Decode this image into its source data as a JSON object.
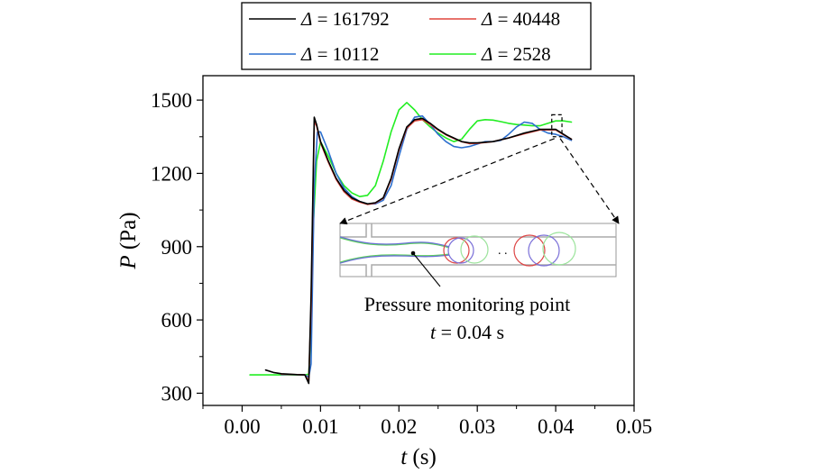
{
  "chart_data": {
    "type": "line",
    "title": "",
    "xlabel_sym": "t",
    "xlabel_unit": " (s)",
    "ylabel_sym": "P",
    "ylabel_unit": " (Pa)",
    "xlim": [
      -0.005,
      0.05
    ],
    "ylim": [
      250,
      1600
    ],
    "xticks": [
      0.0,
      0.01,
      0.02,
      0.03,
      0.04,
      0.05
    ],
    "xtick_labels": [
      "0.00",
      "0.01",
      "0.02",
      "0.03",
      "0.04",
      "0.05"
    ],
    "yticks": [
      300,
      600,
      900,
      1200,
      1500
    ],
    "ytick_labels": [
      "300",
      "600",
      "900",
      "1200",
      "1500"
    ],
    "grid": false,
    "legend_position": "top-center, outside plot",
    "series": [
      {
        "name": "Δ = 161792",
        "legend_sym": "Δ",
        "legend_val": " = 161792",
        "color": "#000000",
        "x": [
          0.003,
          0.004,
          0.005,
          0.006,
          0.007,
          0.008,
          0.0085,
          0.0088,
          0.0092,
          0.0095,
          0.01,
          0.011,
          0.012,
          0.013,
          0.014,
          0.015,
          0.016,
          0.017,
          0.018,
          0.019,
          0.02,
          0.021,
          0.022,
          0.023,
          0.024,
          0.025,
          0.026,
          0.027,
          0.028,
          0.029,
          0.03,
          0.032,
          0.034,
          0.036,
          0.038,
          0.04,
          0.041,
          0.042
        ],
        "y": [
          395,
          385,
          380,
          378,
          376,
          375,
          340,
          700,
          1430,
          1400,
          1330,
          1250,
          1180,
          1130,
          1100,
          1085,
          1075,
          1080,
          1100,
          1180,
          1300,
          1390,
          1420,
          1425,
          1405,
          1380,
          1360,
          1345,
          1330,
          1325,
          1325,
          1330,
          1345,
          1365,
          1380,
          1380,
          1360,
          1340
        ]
      },
      {
        "name": "Δ = 40448",
        "legend_sym": "Δ",
        "legend_val": " = 40448",
        "color": "#e0463c",
        "x": [
          0.005,
          0.006,
          0.007,
          0.008,
          0.0085,
          0.0088,
          0.0092,
          0.0095,
          0.01,
          0.011,
          0.012,
          0.013,
          0.014,
          0.015,
          0.016,
          0.017,
          0.018,
          0.019,
          0.02,
          0.021,
          0.022,
          0.023,
          0.024,
          0.025,
          0.026,
          0.027,
          0.028,
          0.029,
          0.03,
          0.032,
          0.034,
          0.036,
          0.038,
          0.04,
          0.041,
          0.042
        ],
        "y": [
          378,
          377,
          376,
          375,
          350,
          650,
          1410,
          1395,
          1325,
          1245,
          1175,
          1125,
          1095,
          1082,
          1073,
          1078,
          1098,
          1175,
          1295,
          1385,
          1415,
          1420,
          1400,
          1378,
          1358,
          1343,
          1330,
          1322,
          1323,
          1330,
          1345,
          1362,
          1378,
          1378,
          1358,
          1340
        ]
      },
      {
        "name": "Δ = 10112",
        "legend_sym": "Δ",
        "legend_val": " = 10112",
        "color": "#2c6fce",
        "x": [
          0.005,
          0.006,
          0.007,
          0.008,
          0.0085,
          0.0088,
          0.0092,
          0.0096,
          0.01,
          0.011,
          0.012,
          0.013,
          0.014,
          0.015,
          0.016,
          0.017,
          0.018,
          0.019,
          0.02,
          0.021,
          0.022,
          0.023,
          0.024,
          0.025,
          0.026,
          0.027,
          0.028,
          0.029,
          0.03,
          0.031,
          0.032,
          0.033,
          0.034,
          0.035,
          0.036,
          0.037,
          0.038,
          0.039,
          0.04,
          0.041,
          0.042
        ],
        "y": [
          376,
          376,
          376,
          375,
          365,
          420,
          1150,
          1370,
          1370,
          1290,
          1200,
          1140,
          1105,
          1085,
          1075,
          1075,
          1090,
          1150,
          1270,
          1380,
          1430,
          1435,
          1400,
          1360,
          1330,
          1310,
          1305,
          1310,
          1320,
          1330,
          1330,
          1335,
          1360,
          1390,
          1410,
          1405,
          1380,
          1365,
          1360,
          1350,
          1335
        ]
      },
      {
        "name": "Δ = 2528",
        "legend_sym": "Δ",
        "legend_val": " = 2528",
        "color": "#22ee22",
        "x": [
          0.001,
          0.002,
          0.003,
          0.004,
          0.005,
          0.006,
          0.007,
          0.008,
          0.0085,
          0.0088,
          0.0091,
          0.0095,
          0.01,
          0.011,
          0.012,
          0.013,
          0.014,
          0.015,
          0.016,
          0.017,
          0.018,
          0.019,
          0.02,
          0.021,
          0.022,
          0.023,
          0.024,
          0.025,
          0.026,
          0.027,
          0.028,
          0.029,
          0.03,
          0.031,
          0.032,
          0.033,
          0.034,
          0.035,
          0.036,
          0.037,
          0.038,
          0.039,
          0.04,
          0.041,
          0.042
        ],
        "y": [
          375,
          375,
          375,
          375,
          375,
          375,
          375,
          375,
          378,
          560,
          1000,
          1250,
          1330,
          1270,
          1200,
          1150,
          1120,
          1105,
          1110,
          1150,
          1250,
          1370,
          1460,
          1490,
          1460,
          1420,
          1390,
          1365,
          1345,
          1330,
          1340,
          1380,
          1415,
          1420,
          1418,
          1412,
          1405,
          1400,
          1398,
          1395,
          1395,
          1405,
          1415,
          1415,
          1410
        ]
      }
    ],
    "inset": {
      "box_x": [
        0.0395,
        0.0408
      ],
      "box_y": [
        1350,
        1440
      ],
      "label_line1": "Pressure monitoring point",
      "label_eq_sym": "t",
      "label_eq_val": " = 0.04 s",
      "dots": ". ."
    }
  }
}
